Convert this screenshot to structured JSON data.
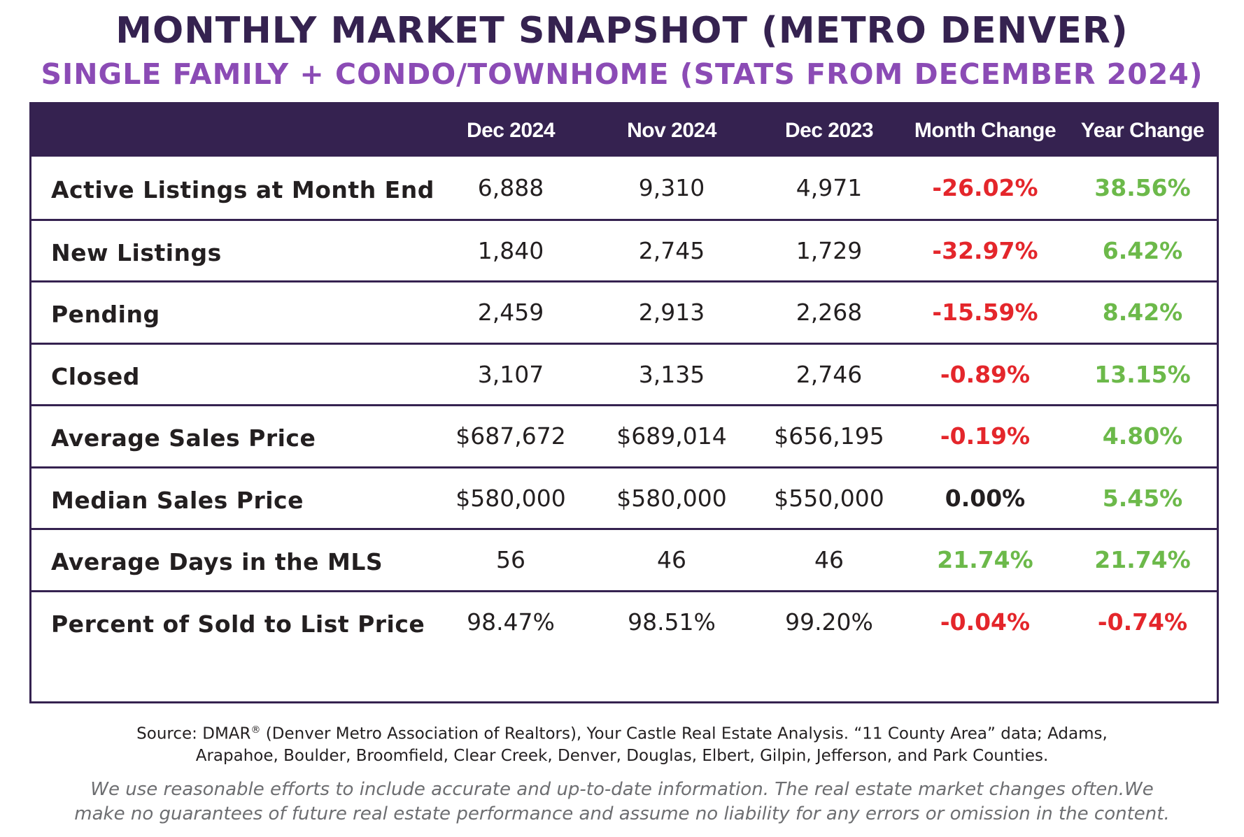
{
  "title": "MONTHLY MARKET SNAPSHOT (METRO DENVER)",
  "subtitle": "SINGLE FAMILY + CONDO/TOWNHOME (STATS FROM DECEMBER 2024)",
  "colors": {
    "header_bg": "#352250",
    "subtitle": "#8b4bb5",
    "negative": "#e4262b",
    "positive": "#6cb94a"
  },
  "table": {
    "headers": [
      "Dec 2024",
      "Nov 2024",
      "Dec 2023",
      "Month Change",
      "Year Change"
    ],
    "rows": [
      {
        "label": "Active Listings at Month End",
        "dec2024": "6,888",
        "nov2024": "9,310",
        "dec2023": "4,971",
        "month_change": "-26.02%",
        "month_tone": "neg",
        "year_change": "38.56%",
        "year_tone": "pos"
      },
      {
        "label": "New Listings",
        "dec2024": "1,840",
        "nov2024": "2,745",
        "dec2023": "1,729",
        "month_change": "-32.97%",
        "month_tone": "neg",
        "year_change": "6.42%",
        "year_tone": "pos"
      },
      {
        "label": "Pending",
        "dec2024": "2,459",
        "nov2024": "2,913",
        "dec2023": "2,268",
        "month_change": "-15.59%",
        "month_tone": "neg",
        "year_change": "8.42%",
        "year_tone": "pos"
      },
      {
        "label": "Closed",
        "dec2024": "3,107",
        "nov2024": "3,135",
        "dec2023": "2,746",
        "month_change": "-0.89%",
        "month_tone": "neg",
        "year_change": "13.15%",
        "year_tone": "pos"
      },
      {
        "label": "Average Sales Price",
        "dec2024": "$687,672",
        "nov2024": "$689,014",
        "dec2023": "$656,195",
        "month_change": "-0.19%",
        "month_tone": "neg",
        "year_change": "4.80%",
        "year_tone": "pos"
      },
      {
        "label": "Median Sales Price",
        "dec2024": "$580,000",
        "nov2024": "$580,000",
        "dec2023": "$550,000",
        "month_change": "0.00%",
        "month_tone": "neu",
        "year_change": "5.45%",
        "year_tone": "pos"
      },
      {
        "label": "Average Days in the MLS",
        "dec2024": "56",
        "nov2024": "46",
        "dec2023": "46",
        "month_change": "21.74%",
        "month_tone": "pos",
        "year_change": "21.74%",
        "year_tone": "pos"
      },
      {
        "label": "Percent of Sold to List Price",
        "dec2024": "98.47%",
        "nov2024": "98.51%",
        "dec2023": "99.20%",
        "month_change": "-0.04%",
        "month_tone": "neg",
        "year_change": "-0.74%",
        "year_tone": "neg"
      }
    ]
  },
  "source": {
    "prefix": "Source: DMAR",
    "registered": "®",
    "line1_rest": " (Denver Metro Association of Realtors), Your Castle Real Estate Analysis. “11 County Area” data; Adams,",
    "line2": "Arapahoe, Boulder, Broomfield, Clear Creek, Denver, Douglas, Elbert, Gilpin, Jefferson, and Park Counties."
  },
  "disclaimer": {
    "line1": "We use reasonable efforts to include accurate and up-to-date information. The real estate market changes often.We",
    "line2": "make no guarantees of future real estate performance and assume no liability for any errors or omission in the content."
  }
}
